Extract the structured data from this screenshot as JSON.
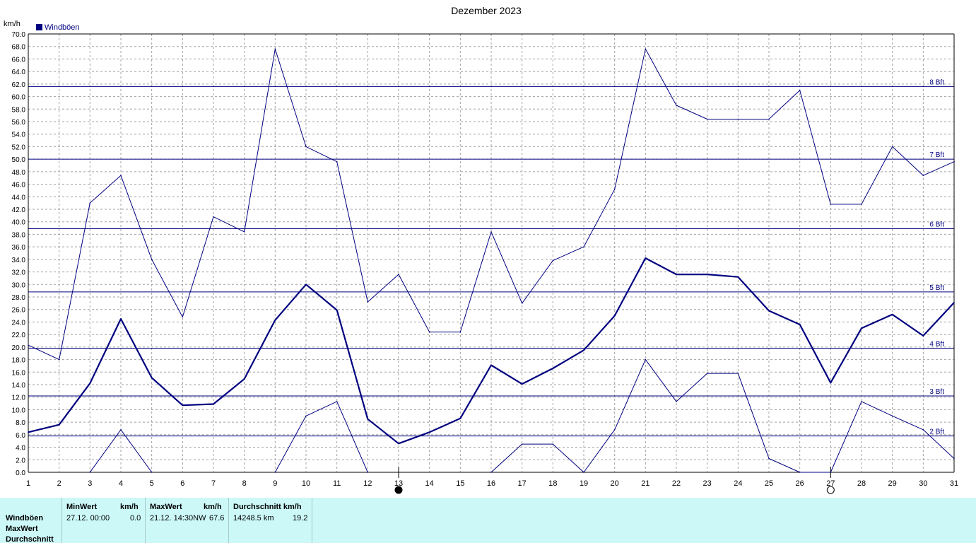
{
  "chart_data": {
    "type": "line",
    "title": "Dezember 2023",
    "ylabel": "km/h",
    "legend": {
      "label": "Windböen",
      "color": "#000080",
      "position": "top-left"
    },
    "ylim": [
      0,
      70
    ],
    "y_tick_step": 2,
    "xlim": [
      1,
      31
    ],
    "x": [
      1,
      2,
      3,
      4,
      5,
      6,
      7,
      8,
      9,
      10,
      11,
      12,
      13,
      14,
      15,
      16,
      17,
      18,
      19,
      20,
      21,
      22,
      23,
      24,
      25,
      26,
      27,
      28,
      29,
      30,
      31
    ],
    "grid": true,
    "color": "#000080",
    "series": [
      {
        "role": "max",
        "values": [
          20.3,
          18.0,
          43.0,
          47.4,
          34.0,
          24.8,
          40.8,
          38.4,
          67.6,
          52.0,
          49.6,
          27.2,
          31.6,
          22.4,
          22.4,
          38.4,
          27.0,
          33.8,
          36.0,
          45.2,
          67.6,
          58.6,
          56.4,
          56.4,
          56.4,
          61.0,
          42.8,
          42.8,
          52.0,
          47.4,
          49.6
        ]
      },
      {
        "role": "avg",
        "values": [
          6.4,
          7.6,
          14.2,
          24.5,
          15.1,
          10.7,
          10.9,
          14.9,
          24.3,
          30.0,
          25.9,
          8.5,
          4.6,
          6.4,
          8.6,
          17.1,
          14.1,
          16.6,
          19.5,
          25.0,
          34.2,
          31.6,
          31.6,
          31.2,
          25.8,
          23.6,
          14.3,
          23.0,
          25.2,
          21.8,
          27.1
        ]
      },
      {
        "role": "min",
        "values": [
          null,
          null,
          0.0,
          6.8,
          0.0,
          null,
          null,
          null,
          0.0,
          9.0,
          11.3,
          0.0,
          null,
          null,
          null,
          0.0,
          4.5,
          4.5,
          0.0,
          6.8,
          18.0,
          11.3,
          15.8,
          15.8,
          2.2,
          0.0,
          0.0,
          11.3,
          9.0,
          6.8,
          2.2
        ]
      }
    ],
    "reference_lines": [
      {
        "label": "2 Bft",
        "value": 5.8
      },
      {
        "label": "3 Bft",
        "value": 12.2
      },
      {
        "label": "4 Bft",
        "value": 19.8
      },
      {
        "label": "5 Bft",
        "value": 28.8
      },
      {
        "label": "6 Bft",
        "value": 38.9
      },
      {
        "label": "7 Bft",
        "value": 50.0
      },
      {
        "label": "8 Bft",
        "value": 61.6
      }
    ],
    "moon_phases": [
      {
        "day": 13,
        "phase": "new"
      },
      {
        "day": 27,
        "phase": "full"
      }
    ]
  },
  "stats": {
    "row_labels": [
      "Windböen",
      "MaxWert",
      "Durchschnitt"
    ],
    "min": {
      "header": "MinWert",
      "unit": "km/h",
      "when": "27.12.  00:00",
      "value": "0.0"
    },
    "max": {
      "header": "MaxWert",
      "unit": "km/h",
      "when": "21.12.  14:30NW",
      "value": "67.6"
    },
    "avg": {
      "header": "Durchschnitt km/h",
      "distance": "14248.5 km",
      "value": "19.2"
    }
  }
}
